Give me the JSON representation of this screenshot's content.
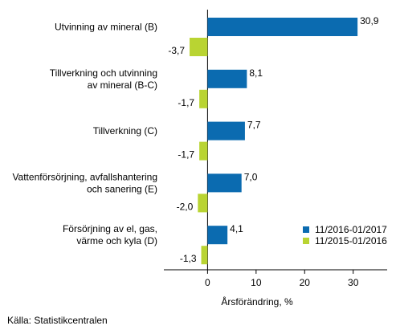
{
  "chart_data": {
    "type": "bar",
    "orientation": "horizontal",
    "categories": [
      [
        "Utvinning av mineral (B)"
      ],
      [
        "Tillverkning och utvinning",
        "av mineral (B-C)"
      ],
      [
        "Tillverkning (C)"
      ],
      [
        "Vattenförsörjning, avfallshantering",
        "och sanering (E)"
      ],
      [
        "Försörjning av el, gas,",
        "värme och kyla (D)"
      ]
    ],
    "series": [
      {
        "name": "11/2016-01/2017",
        "color": "#0b6bb0",
        "values": [
          30.9,
          8.1,
          7.7,
          7.0,
          4.1
        ],
        "labels": [
          "30,9",
          "8,1",
          "7,7",
          "7,0",
          "4,1"
        ]
      },
      {
        "name": "11/2015-01/2016",
        "color": "#b9d432",
        "values": [
          -3.7,
          -1.7,
          -1.7,
          -2.0,
          -1.3
        ],
        "labels": [
          "-3,7",
          "-1,7",
          "-1,7",
          "-2,0",
          "-1,3"
        ]
      }
    ],
    "xlim": [
      -9,
      37
    ],
    "xticks": [
      0,
      10,
      20,
      30
    ],
    "xtick_labels": [
      "0",
      "10",
      "20",
      "30"
    ],
    "xlabel": "Årsförändring, %",
    "legend_position": "bottom-right",
    "grid": false
  },
  "source": "Källa: Statistikcentralen"
}
